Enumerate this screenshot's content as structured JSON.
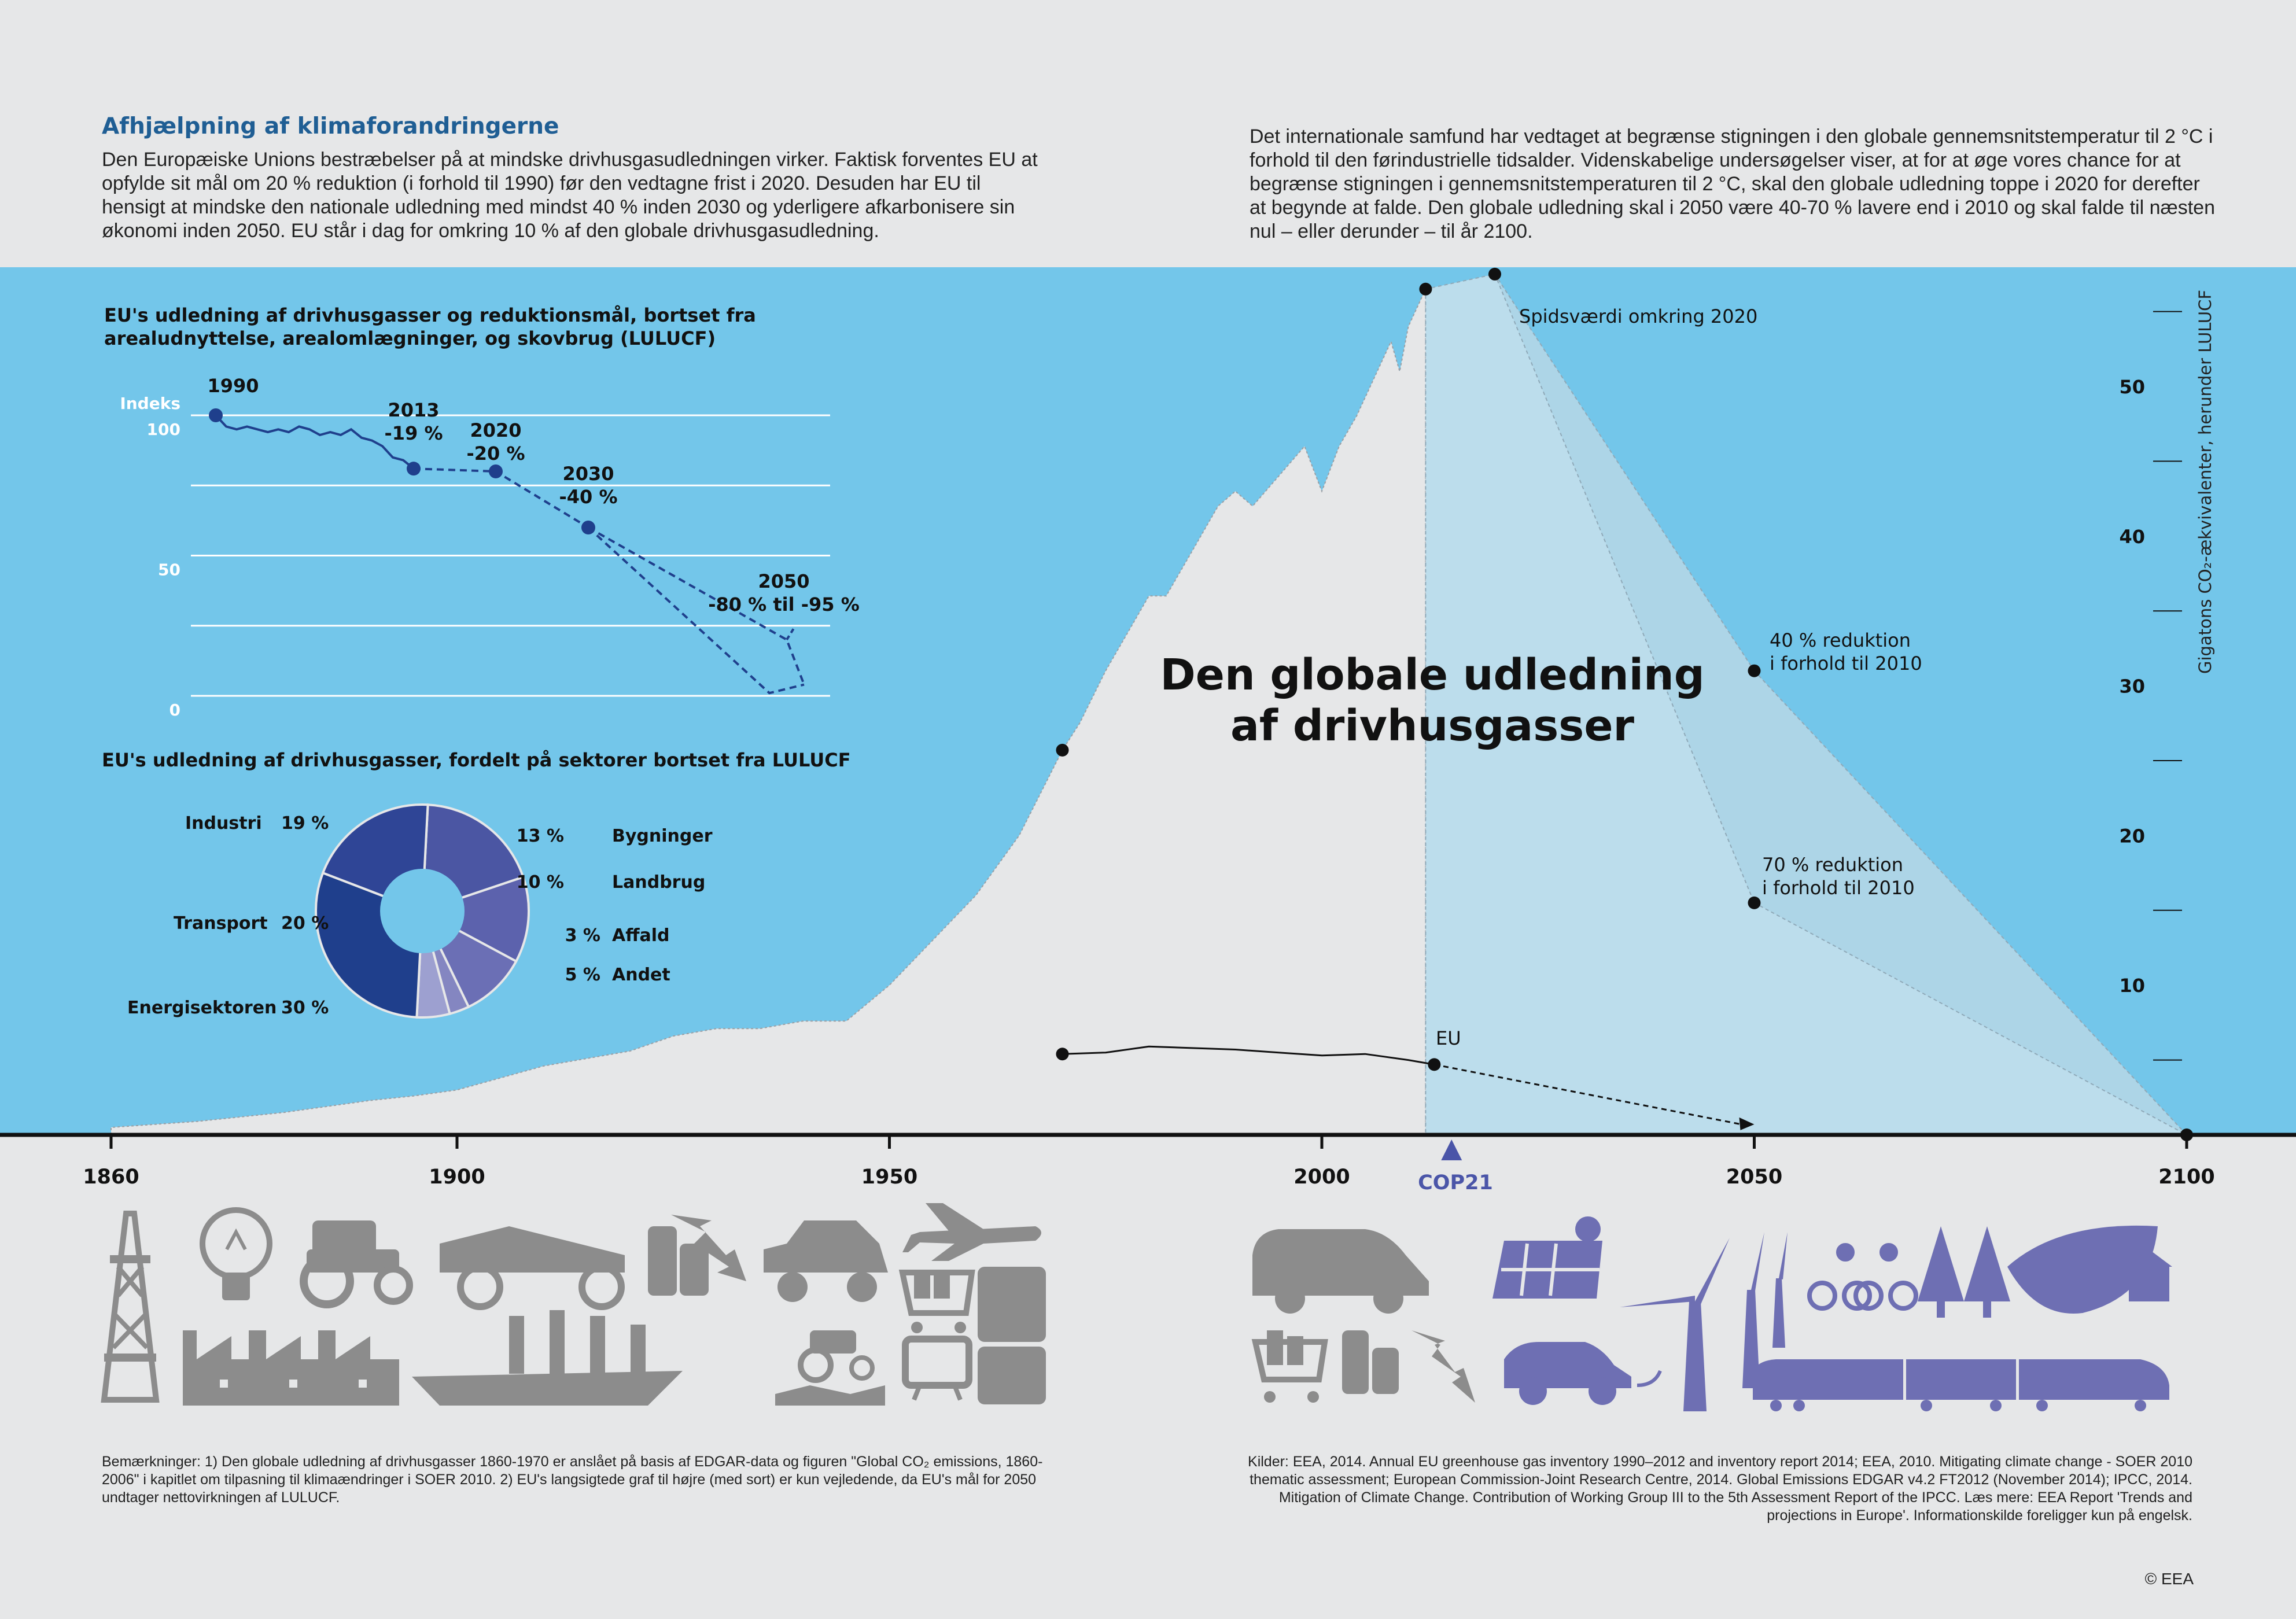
{
  "header": {
    "title": "Afhjælpning af klimaforandringerne",
    "left_text": "Den Europæiske Unions bestræbelser på at mindske drivhusgasudledningen virker. Faktisk forventes EU at opfylde sit mål om 20 % reduktion (i forhold til 1990) før den vedtagne frist i 2020. Desuden har EU til hensigt at mindske den nationale udledning med mindst 40 % inden 2030 og yderligere afkarbonisere sin økonomi inden 2050. EU står i dag for omkring 10 % af den globale drivhusgasudledning.",
    "right_text": "Det internationale samfund har vedtaget at begrænse stigningen i den globale gennemsnitstemperatur til 2 °C i forhold til den førindustrielle tidsalder. Videnskabelige undersøgelser viser, at for at øge vores chance for at begrænse stigningen i gennemsnitstemperaturen til 2 °C, skal den globale udledning toppe i 2020 for derefter at begynde at falde. Den globale udledning skal i 2050 være 40-70 % lavere end i 2010 og skal falde til næsten nul – eller derunder – til år 2100."
  },
  "footer": {
    "notes": "Bemærkninger: 1) Den globale udledning af drivhusgasser 1860-1970 er anslået på basis af EDGAR-data og figuren \"Global CO₂ emissions, 1860-2006\" i kapitlet om tilpasning til klimaændringer i SOER 2010. 2) EU's langsigtede graf til højre (med sort) er kun vejledende, da EU's mål for 2050 undtager nettovirkningen af LULUCF.",
    "sources": "Kilder: EEA, 2014. Annual EU greenhouse gas inventory 1990–2012 and inventory report 2014; EEA, 2010. Mitigating climate change - SOER 2010 thematic assessment; European Commission-Joint Research Centre, 2014. Global Emissions EDGAR v4.2 FT2012 (November 2014); IPCC, 2014. Mitigation of Climate Change. Contribution of Working Group III to the 5th Assessment Report of the IPCC. Læs mere: EEA Report 'Trends and projections in Europe'. Informationskilde foreligger kun på engelsk.",
    "copyright": "© EEA"
  },
  "colors": {
    "sky": "#73c6ea",
    "area": "#e6e7e8",
    "projection": "#c9e1ec",
    "eu_index": "#1f3f8c",
    "icon_grey": "#8c8c8c",
    "icon_purple": "#6e6fb3"
  },
  "icons_past": [
    "oil-derrick-icon",
    "light-bulb-icon",
    "tractor-icon",
    "factory-icon",
    "vintage-car-icon",
    "coins-icon",
    "ship-icon",
    "lightning-icon",
    "car-icon",
    "airplane-icon",
    "shopping-cart-icon",
    "refrigerator-icon",
    "farm-tractor-icon",
    "television-icon"
  ],
  "icons_future": [
    "car-icon",
    "shopping-cart-icon",
    "coins-icon",
    "lightning-icon",
    "solar-panel-icon",
    "electric-car-icon",
    "wind-turbine-icon",
    "cyclists-icon",
    "trees-icon",
    "eco-house-leaf-icon",
    "train-icon"
  ],
  "chart_data": [
    {
      "type": "area",
      "title": "Den globale udledning af drivhusgasser",
      "ylabel": "Gigatons CO₂-ækvivalenter, herunder LULUCF",
      "x_ticks": [
        "1860",
        "1900",
        "1950",
        "2000",
        "2050",
        "2100"
      ],
      "y_ticks": [
        "10",
        "20",
        "30",
        "40",
        "50"
      ],
      "xlim": [
        1860,
        2100
      ],
      "ylim": [
        0,
        55
      ],
      "cop21_label": "COP21",
      "cop21_year": 2015,
      "global_series": {
        "x": [
          1860,
          1870,
          1880,
          1890,
          1895,
          1900,
          1905,
          1910,
          1915,
          1920,
          1925,
          1930,
          1935,
          1940,
          1945,
          1950,
          1955,
          1960,
          1965,
          1970,
          1972,
          1975,
          1978,
          1980,
          1982,
          1985,
          1988,
          1990,
          1992,
          1995,
          1998,
          2000,
          2002,
          2004,
          2006,
          2008,
          2009,
          2010,
          2012
        ],
        "values": [
          0.5,
          0.9,
          1.5,
          2.3,
          2.6,
          3.0,
          3.8,
          4.6,
          5.1,
          5.6,
          6.6,
          7.1,
          7.1,
          7.6,
          7.6,
          10,
          13,
          16,
          20,
          25.7,
          27.5,
          31,
          34,
          36,
          36,
          39,
          42,
          43,
          42,
          44,
          46,
          43,
          46,
          48,
          50.5,
          53,
          51,
          54,
          56.5
        ]
      },
      "eu_series": {
        "name": "EU",
        "x": [
          1970,
          1975,
          1980,
          1985,
          1990,
          1995,
          2000,
          2005,
          2010,
          2013
        ],
        "values": [
          5.4,
          5.5,
          5.9,
          5.8,
          5.7,
          5.5,
          5.3,
          5.4,
          5.0,
          4.7
        ],
        "projection": {
          "x": [
            2013,
            2050
          ],
          "values": [
            4.7,
            0.7
          ]
        }
      },
      "projection": {
        "peak": {
          "x": 2020,
          "value": 57.5,
          "label": "Spidsværdi omkring 2020"
        },
        "reduction_40": {
          "x": 2050,
          "value": 31,
          "label_line1": "40 % reduktion",
          "label_line2": "i forhold til 2010"
        },
        "reduction_70": {
          "x": 2050,
          "value": 15.5,
          "label_line1": "70 % reduktion",
          "label_line2": "i forhold til 2010"
        },
        "end": {
          "x": 2100,
          "value": 0
        }
      },
      "markers": [
        {
          "x": 1970,
          "value": 25.7
        },
        {
          "x": 2012,
          "value": 56.5
        }
      ]
    },
    {
      "type": "line",
      "title_line1": "EU's udledning af drivhusgasser og reduktionsmål, bortset fra",
      "title_line2": "arealudnyttelse, arealomlægninger, og skovbrug (LULUCF)",
      "ylabel": "Indeks",
      "y_ticks": [
        "100",
        "50",
        "0"
      ],
      "ylim": [
        0,
        100
      ],
      "history": [
        100,
        96,
        95,
        96,
        95,
        94,
        95,
        94,
        96,
        95,
        93,
        94,
        93,
        95,
        92,
        91,
        89,
        85,
        84,
        81
      ],
      "milestones": [
        {
          "year": "1990",
          "change": "",
          "index": 100
        },
        {
          "year": "2013",
          "change": "-19 %",
          "index": 81
        },
        {
          "year": "2020",
          "change": "-20 %",
          "index": 80
        },
        {
          "year": "2030",
          "change": "-40 %",
          "index": 60
        },
        {
          "year": "2050",
          "change": "-80 % til -95 %",
          "index": 5
        }
      ]
    },
    {
      "type": "pie",
      "title": "EU's udledning af drivhusgasser, fordelt på sektorer bortset fra LULUCF",
      "slices": [
        {
          "label": "Industri",
          "value": 19,
          "value_label": "19 %",
          "color": "#4b56a3"
        },
        {
          "label": "Bygninger",
          "value": 13,
          "value_label": "13 %",
          "color": "#5c62ad"
        },
        {
          "label": "Landbrug",
          "value": 10,
          "value_label": "10 %",
          "color": "#6b6fb5"
        },
        {
          "label": "Affald",
          "value": 3,
          "value_label": "3 %",
          "color": "#8486c1"
        },
        {
          "label": "Andet",
          "value": 5,
          "value_label": "5 %",
          "color": "#9da0d0"
        },
        {
          "label": "Energisektoren",
          "value": 30,
          "value_label": "30 %",
          "color": "#1f3f8c"
        },
        {
          "label": "Transport",
          "value": 20,
          "value_label": "20 %",
          "color": "#2f4596"
        }
      ]
    }
  ]
}
